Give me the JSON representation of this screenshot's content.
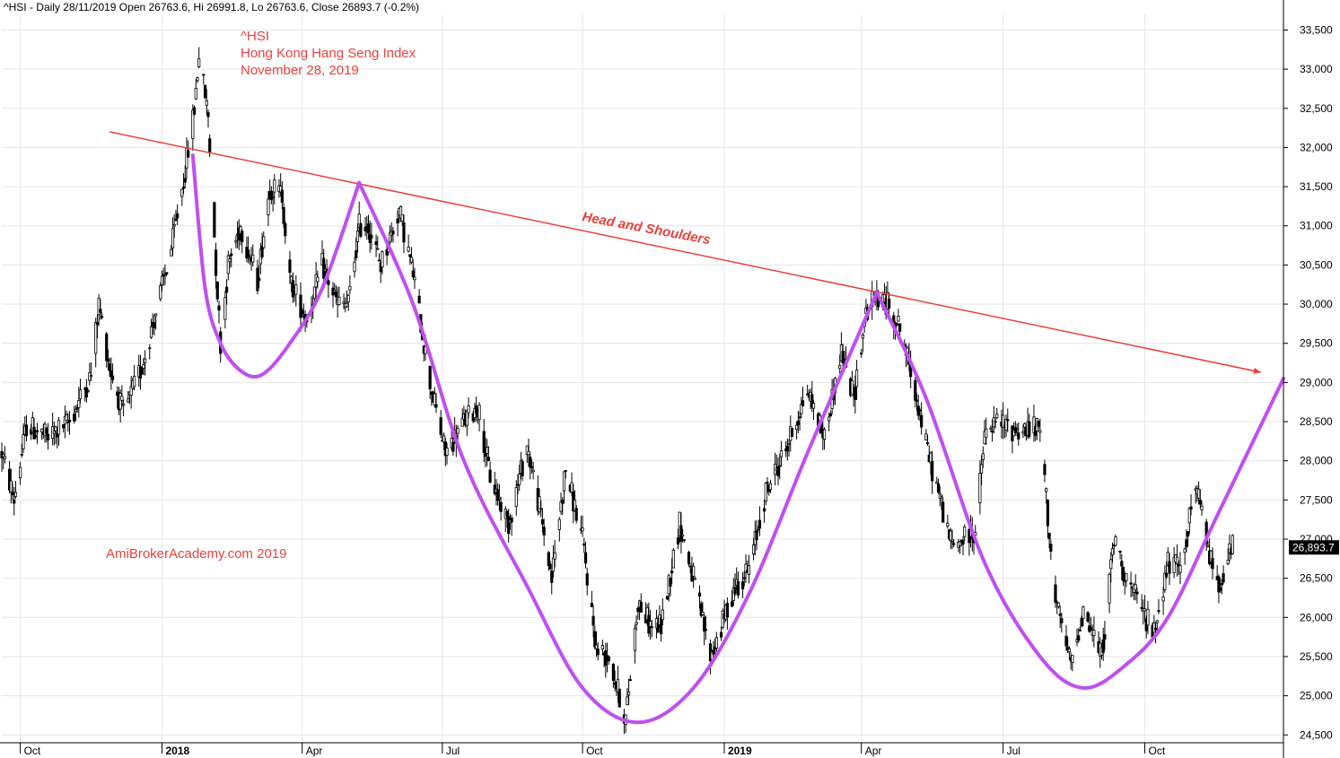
{
  "header": {
    "text": "^HSI - Daily 28/11/2019 Open 26763.6, Hi 26991.8, Lo 26763.6, Close 26893.7 (-0.2%)"
  },
  "title_block": {
    "line1": "^HSI",
    "line2": "Hong Kong Hang Seng Index",
    "line3": "November 28, 2019"
  },
  "annotation": "Head and Shoulders",
  "watermark": "AmiBrokerAcademy.com   2019",
  "last_price_label": "26,893.7",
  "colors": {
    "trendline": "#e8413c",
    "pattern_curve": "#c04ff0",
    "candles": "#000000",
    "grid": "#e6e6e6",
    "price_label_bg": "#000000"
  },
  "chart_data": {
    "type": "candlestick",
    "title": "^HSI",
    "xlabel": "",
    "ylabel": "",
    "ylim": [
      24400,
      33700
    ],
    "y_ticks": [
      24500,
      25000,
      25500,
      26000,
      26500,
      27000,
      27500,
      28000,
      28500,
      29000,
      29500,
      30000,
      30500,
      31000,
      31500,
      32000,
      32500,
      33000,
      33500
    ],
    "y_tick_labels": [
      "24,500",
      "25,000",
      "25,500",
      "26,000",
      "26,500",
      "27,000",
      "27,500",
      "28,000",
      "28,500",
      "29,000",
      "29,500",
      "30,000",
      "30,500",
      "31,000",
      "31,500",
      "32,000",
      "32,500",
      "33,000",
      "33,500"
    ],
    "x_range": [
      "2017-09-20",
      "2019-12-31"
    ],
    "x_ticks": [
      {
        "date": "2017-10-02",
        "label": "Oct",
        "major": false
      },
      {
        "date": "2018-01-02",
        "label": "2018",
        "major": true
      },
      {
        "date": "2018-04-03",
        "label": "Apr",
        "major": false
      },
      {
        "date": "2018-07-03",
        "label": "Jul",
        "major": false
      },
      {
        "date": "2018-10-02",
        "label": "Oct",
        "major": false
      },
      {
        "date": "2019-01-02",
        "label": "2019",
        "major": true
      },
      {
        "date": "2019-04-01",
        "label": "Apr",
        "major": false
      },
      {
        "date": "2019-07-02",
        "label": "Jul",
        "major": false
      },
      {
        "date": "2019-10-02",
        "label": "Oct",
        "major": false
      }
    ],
    "grid": true,
    "price_path": [
      [
        "2017-09-20",
        28100
      ],
      [
        "2017-09-28",
        27500
      ],
      [
        "2017-10-06",
        28450
      ],
      [
        "2017-10-20",
        28300
      ],
      [
        "2017-11-03",
        28500
      ],
      [
        "2017-11-17",
        29100
      ],
      [
        "2017-11-22",
        30000
      ],
      [
        "2017-11-29",
        29200
      ],
      [
        "2017-12-08",
        28600
      ],
      [
        "2017-12-20",
        29200
      ],
      [
        "2017-12-29",
        29900
      ],
      [
        "2018-01-08",
        30700
      ],
      [
        "2018-01-17",
        31700
      ],
      [
        "2018-01-23",
        32500
      ],
      [
        "2018-01-26",
        33200
      ],
      [
        "2018-02-01",
        32400
      ],
      [
        "2018-02-06",
        30500
      ],
      [
        "2018-02-09",
        29500
      ],
      [
        "2018-02-14",
        30500
      ],
      [
        "2018-02-22",
        31000
      ],
      [
        "2018-03-05",
        30300
      ],
      [
        "2018-03-13",
        31500
      ],
      [
        "2018-03-21",
        31400
      ],
      [
        "2018-03-26",
        30300
      ],
      [
        "2018-04-06",
        29800
      ],
      [
        "2018-04-16",
        30500
      ],
      [
        "2018-04-26",
        30000
      ],
      [
        "2018-05-03",
        30000
      ],
      [
        "2018-05-10",
        31000
      ],
      [
        "2018-05-16",
        31000
      ],
      [
        "2018-05-24",
        30500
      ],
      [
        "2018-06-05",
        31200
      ],
      [
        "2018-06-14",
        30400
      ],
      [
        "2018-06-25",
        29000
      ],
      [
        "2018-07-05",
        28100
      ],
      [
        "2018-07-17",
        28500
      ],
      [
        "2018-07-26",
        28700
      ],
      [
        "2018-08-03",
        27800
      ],
      [
        "2018-08-15",
        27200
      ],
      [
        "2018-08-27",
        28200
      ],
      [
        "2018-09-05",
        27300
      ],
      [
        "2018-09-12",
        26500
      ],
      [
        "2018-09-21",
        27900
      ],
      [
        "2018-10-02",
        27000
      ],
      [
        "2018-10-11",
        25600
      ],
      [
        "2018-10-19",
        25500
      ],
      [
        "2018-10-30",
        24700
      ],
      [
        "2018-11-07",
        26200
      ],
      [
        "2018-11-15",
        25900
      ],
      [
        "2018-11-22",
        25900
      ],
      [
        "2018-12-04",
        27200
      ],
      [
        "2018-12-13",
        26500
      ],
      [
        "2018-12-24",
        25500
      ],
      [
        "2018-12-28",
        25700
      ],
      [
        "2019-01-09",
        26400
      ],
      [
        "2019-01-18",
        26600
      ],
      [
        "2019-01-29",
        27600
      ],
      [
        "2019-02-12",
        28200
      ],
      [
        "2019-02-25",
        28900
      ],
      [
        "2019-03-08",
        28300
      ],
      [
        "2019-03-19",
        29400
      ],
      [
        "2019-03-27",
        28800
      ],
      [
        "2019-04-04",
        29900
      ],
      [
        "2019-04-11",
        30100
      ],
      [
        "2019-04-18",
        30000
      ],
      [
        "2019-04-26",
        29700
      ],
      [
        "2019-05-06",
        28900
      ],
      [
        "2019-05-13",
        28200
      ],
      [
        "2019-05-21",
        27600
      ],
      [
        "2019-05-30",
        26900
      ],
      [
        "2019-06-06",
        27000
      ],
      [
        "2019-06-14",
        27100
      ],
      [
        "2019-06-20",
        28300
      ],
      [
        "2019-06-28",
        28500
      ],
      [
        "2019-07-08",
        28400
      ],
      [
        "2019-07-18",
        28400
      ],
      [
        "2019-07-26",
        28400
      ],
      [
        "2019-08-05",
        26200
      ],
      [
        "2019-08-15",
        25400
      ],
      [
        "2019-08-23",
        26100
      ],
      [
        "2019-09-04",
        25500
      ],
      [
        "2019-09-12",
        27000
      ],
      [
        "2019-09-20",
        26500
      ],
      [
        "2019-09-30",
        26100
      ],
      [
        "2019-10-08",
        25800
      ],
      [
        "2019-10-17",
        26700
      ],
      [
        "2019-10-25",
        26600
      ],
      [
        "2019-11-04",
        27700
      ],
      [
        "2019-11-11",
        27000
      ],
      [
        "2019-11-18",
        26400
      ],
      [
        "2019-11-28",
        26894
      ]
    ],
    "last_close": 26893.7,
    "trendline": {
      "start": [
        "2017-11-29",
        32200
      ],
      "end": [
        "2019-12-31",
        29130
      ]
    },
    "pattern_arcs": [
      {
        "points": [
          [
            "2018-01-22",
            31900
          ],
          [
            "2018-01-30",
            30200
          ],
          [
            "2018-02-09",
            29500
          ],
          [
            "2018-02-22",
            29150
          ],
          [
            "2018-03-08",
            29100
          ],
          [
            "2018-03-26",
            29500
          ],
          [
            "2018-04-16",
            30200
          ],
          [
            "2018-05-10",
            31550
          ]
        ]
      },
      {
        "points": [
          [
            "2018-05-10",
            31550
          ],
          [
            "2018-06-14",
            30000
          ],
          [
            "2018-07-17",
            28000
          ],
          [
            "2018-08-27",
            26400
          ],
          [
            "2018-10-02",
            25100
          ],
          [
            "2018-11-07",
            24660
          ],
          [
            "2018-12-13",
            25100
          ],
          [
            "2019-01-18",
            26300
          ],
          [
            "2019-02-25",
            28100
          ],
          [
            "2019-04-11",
            30150
          ]
        ]
      },
      {
        "points": [
          [
            "2019-04-11",
            30150
          ],
          [
            "2019-05-13",
            28800
          ],
          [
            "2019-06-20",
            26700
          ],
          [
            "2019-07-26",
            25500
          ],
          [
            "2019-08-23",
            25100
          ],
          [
            "2019-09-20",
            25400
          ],
          [
            "2019-10-17",
            26000
          ],
          [
            "2019-11-18",
            27300
          ],
          [
            "2019-12-31",
            29050
          ]
        ]
      }
    ]
  }
}
